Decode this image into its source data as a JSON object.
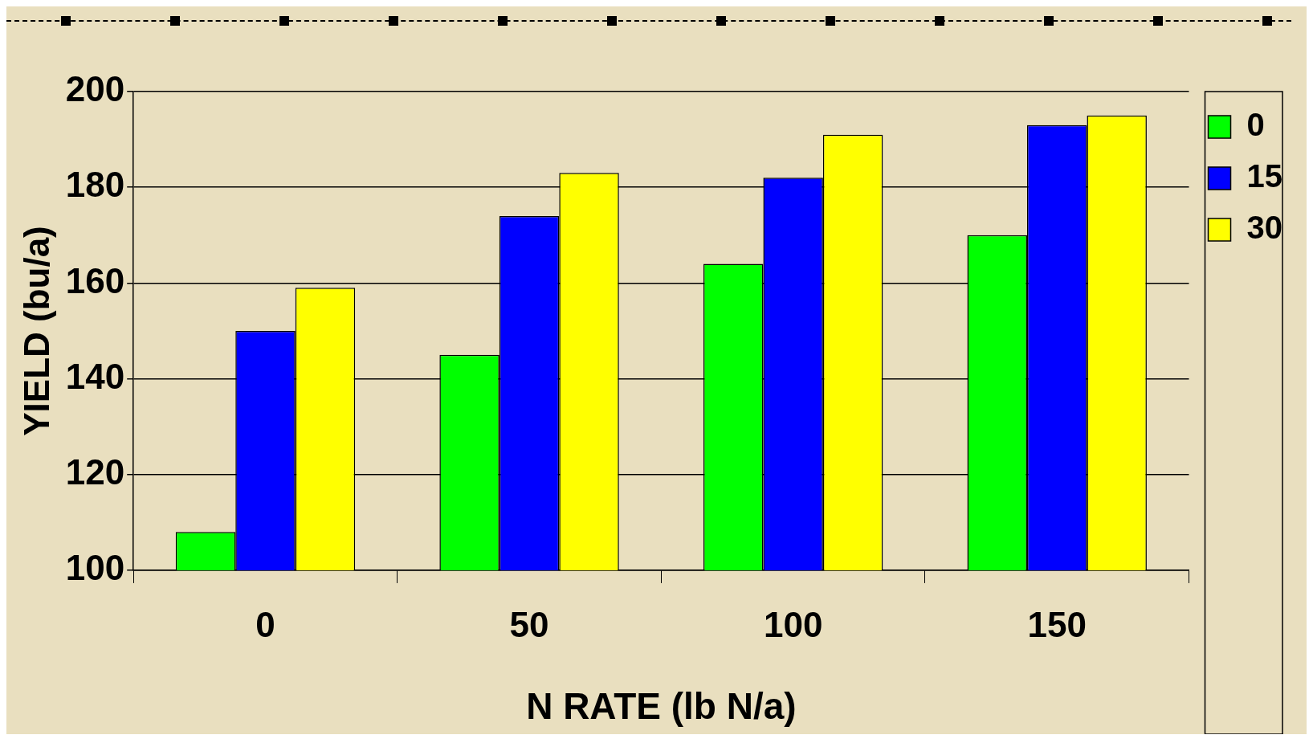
{
  "chart_data": {
    "type": "bar",
    "xlabel": "N RATE (lb N/a)",
    "ylabel": "YIELD (bu/a)",
    "categories": [
      "0",
      "50",
      "100",
      "150"
    ],
    "series": [
      {
        "name": "0",
        "color": "#00ff00",
        "values": [
          108,
          145,
          164,
          170
        ]
      },
      {
        "name": "15",
        "color": "#0000ff",
        "values": [
          150,
          174,
          182,
          193
        ]
      },
      {
        "name": "30",
        "color": "#ffff00",
        "values": [
          159,
          183,
          191,
          195
        ]
      }
    ],
    "ylim": [
      100,
      200
    ],
    "yticks": [
      100,
      120,
      140,
      160,
      180,
      200
    ],
    "grid": "y",
    "legend": "top right"
  }
}
